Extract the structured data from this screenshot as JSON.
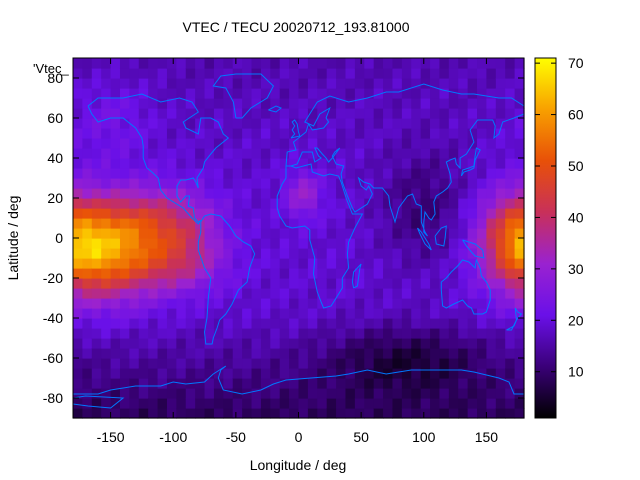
{
  "chart_data": {
    "type": "heatmap",
    "title": "VTEC / TECU 20020712_193.81000",
    "xlabel": "Longitude / deg",
    "ylabel": "Latitude / deg",
    "legend_key": "'Vtec_",
    "xlim": [
      -180,
      180
    ],
    "ylim": [
      -90,
      90
    ],
    "zlim": [
      1,
      71
    ],
    "x_ticks": [
      -150,
      -100,
      -50,
      0,
      50,
      100,
      150
    ],
    "y_ticks": [
      -80,
      -60,
      -40,
      -20,
      0,
      20,
      40,
      60,
      80
    ],
    "colorbar_ticks": [
      10,
      20,
      30,
      40,
      50,
      60,
      70
    ],
    "colormap": [
      "#000000",
      "#3a0078",
      "#6a10e8",
      "#9a22d0",
      "#c8305a",
      "#e85008",
      "#f8a000",
      "#ffff00"
    ],
    "coastline_color": "#0078ff",
    "grid_step_deg": [
      7.5,
      5
    ],
    "features": [
      {
        "lon": -158,
        "lat": -8,
        "sx": 30,
        "sy": 16,
        "amp": 32
      },
      {
        "lon": -118,
        "lat": 7,
        "sx": 30,
        "sy": 13,
        "amp": 20
      },
      {
        "lon": -100,
        "lat": -14,
        "sx": 28,
        "sy": 10,
        "amp": 12
      },
      {
        "lon": -85,
        "lat": 2,
        "sx": 18,
        "sy": 14,
        "amp": 6
      },
      {
        "lon": 175,
        "lat": 2,
        "sx": 22,
        "sy": 16,
        "amp": 22
      },
      {
        "lon": 4,
        "lat": 22,
        "sx": 10,
        "sy": 8,
        "amp": 12
      },
      {
        "lon": 100,
        "lat": 15,
        "sx": 25,
        "sy": 20,
        "amp": -8
      },
      {
        "lon": 85,
        "lat": -60,
        "sx": 45,
        "sy": 12,
        "amp": -9
      },
      {
        "lon": -150,
        "lat": 60,
        "sx": 25,
        "sy": 15,
        "amp": 5
      }
    ],
    "base_level": 16
  }
}
